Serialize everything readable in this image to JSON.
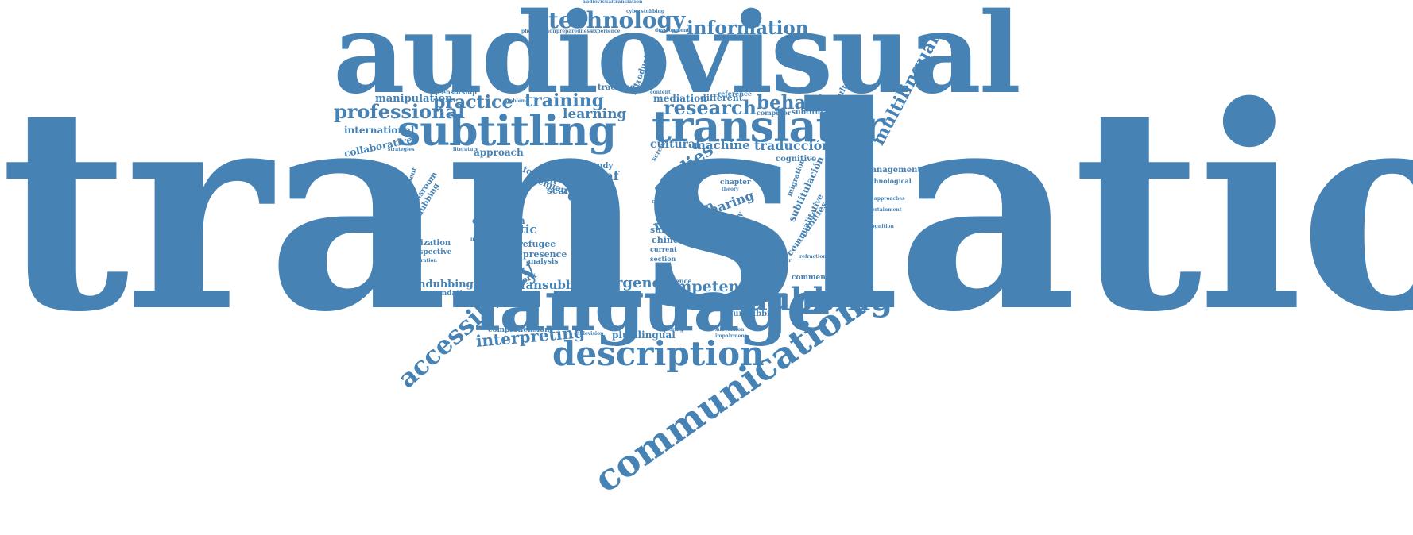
{
  "colors": {
    "word_color": "#4682b4",
    "background": "#ffffff"
  },
  "cloud": {
    "translation": "translation",
    "audiovisual": "audiovisual",
    "language": "language",
    "subtitling": "subtitling",
    "translator": "translator",
    "communication": "communication",
    "description": "description",
    "accessibility": "accessibility",
    "dubbing": "dubbing",
    "technology": "technology",
    "information": "information",
    "professional": "professional",
    "practice": "practice",
    "training": "training",
    "research": "research",
    "behaviour": "behaviour",
    "multilingual": "multilingual",
    "interpreting": "interpreting",
    "emergency": "emergency",
    "competence": "competence",
    "fansubbing": "fansubbing",
    "fandubbing": "fandubbing",
    "learning": "learning",
    "manipulation": "manipulation",
    "international": "international",
    "collaborative": "collaborative",
    "approach": "approach",
    "machine": "machine",
    "traducción": "traducción",
    "cultural": "cultural",
    "mediation": "mediation",
    "different": "different",
    "studies": "studies",
    "crisis": "crisis",
    "deaf": "deaf",
    "english": "english",
    "linguistic": "linguistic",
    "education": "education",
    "revision": "revision",
    "hearing": "hearing",
    "subtitle": "subtitle",
    "chinese": "chinese",
    "refugee": "refugee",
    "presence": "presence",
    "analysis": "analysis",
    "search": "search",
    "belgian": "belgian",
    "foreign": "foreign",
    "community": "community",
    "classroom": "classroom",
    "cyberdubbing": "cyberdubbing",
    "localization": "localization",
    "retrospective": "retrospective",
    "recommendation": "recommendation",
    "plurilingual": "plurilingual",
    "comprehension": "comprehension",
    "framework": "framework",
    "fundubbing": "fundubbing",
    "commentary": "commentary",
    "communities": "communities",
    "subtitulación": "subtitulación",
    "qualitative": "qualitative",
    "cognitive": "cognitive",
    "fansubs": "fansubs",
    "editing": "editing",
    "chapter": "chapter",
    "industry": "industry",
    "culture": "culture",
    "student": "student",
    "management": "management",
    "technological": "technological",
    "pluricultural": "pluricultural",
    "subtitulado": "subtitulado",
    "computer": "computer",
    "reference": "reference",
    "introduction": "introduction",
    "tracking": "tracking",
    "censorship": "censorship",
    "problem": "problem",
    "project": "project",
    "study": "study",
    "media": "media",
    "article": "article",
    "disaster": "disaster",
    "current": "current",
    "section": "section",
    "audience": "audience",
    "method": "method",
    "present": "present",
    "content": "content",
    "child": "child",
    "paper": "paper",
    "theory": "theory",
    "screen": "screen",
    "interview": "interview",
    "integration": "integration",
    "assessment": "assessment",
    "processes": "processes",
    "migration": "migration",
    "audiovisualtranslation": "audiovisualtranslation",
    "development": "development",
    "experience": "experience",
    "preparedness": "preparedness",
    "phenomenon": "phenomenon",
    "cyberstubbing": "cyberstubbing",
    "strategies": "strategies",
    "literature": "literature",
    "entertainment": "entertainment",
    "refraction": "refraction",
    "describer": "describer",
    "impairment": "impairment",
    "subversion": "subversion",
    "exploring": "exploring",
    "television": "television",
    "approaches": "approaches",
    "recognition": "recognition"
  }
}
